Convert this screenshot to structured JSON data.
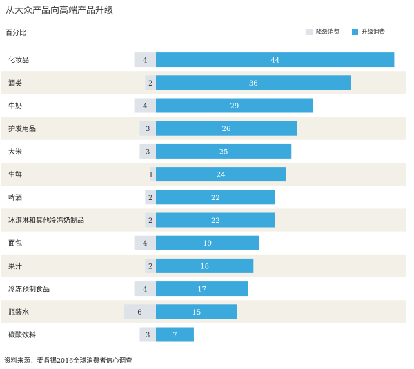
{
  "colors": {
    "downgrade": "#dde3e8",
    "upgrade": "#3ca9dc",
    "stripe": "#f3f0e8",
    "background": "#ffffff"
  },
  "chart_data": {
    "type": "bar",
    "title": "从大众产品向高端产品升级",
    "unit_label": "百分比",
    "legend_position": "top-right",
    "categories": [
      "化妆品",
      "酒类",
      "牛奶",
      "护发用品",
      "大米",
      "生鲜",
      "啤酒",
      "冰淇淋和其他冷冻奶制品",
      "面包",
      "果汁",
      "冷冻预制食品",
      "瓶装水",
      "碳酸饮料"
    ],
    "series": [
      {
        "name": "降级消费",
        "values": [
          4,
          2,
          4,
          3,
          3,
          1,
          2,
          2,
          4,
          2,
          4,
          6,
          3
        ]
      },
      {
        "name": "升级消费",
        "values": [
          44,
          36,
          29,
          26,
          25,
          24,
          22,
          22,
          19,
          18,
          17,
          15,
          7
        ]
      }
    ],
    "source": "资料来源：麦肯锡2016全球消费者信心调查"
  }
}
